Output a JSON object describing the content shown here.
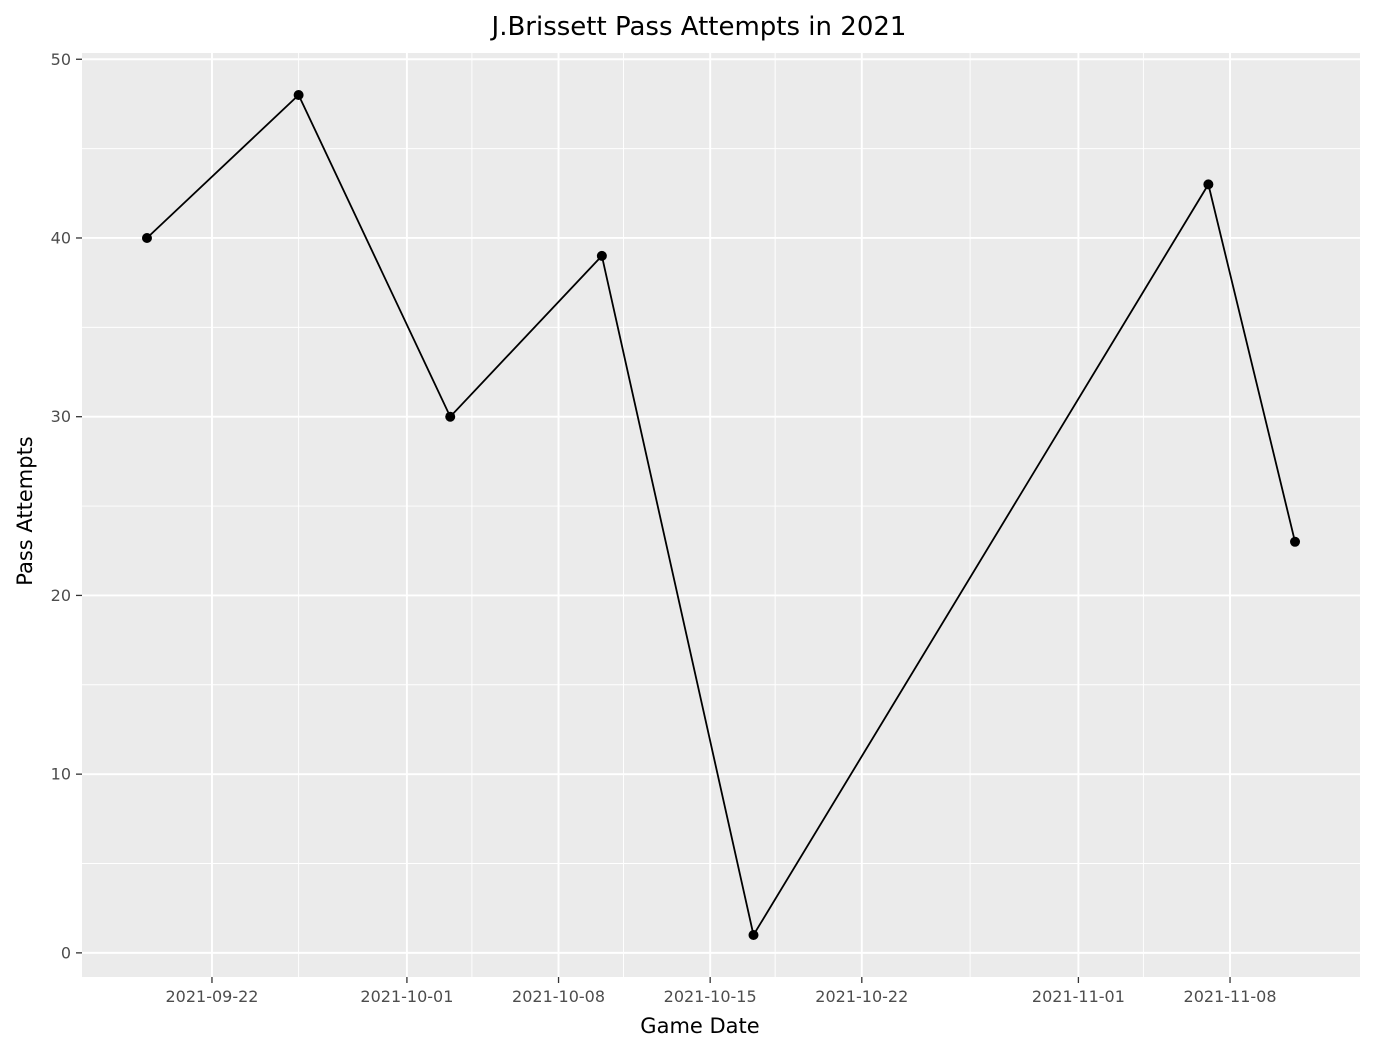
{
  "chart_data": {
    "type": "line",
    "title": "J.Brissett Pass Attempts in 2021",
    "xlabel": "Game Date",
    "ylabel": "Pass Attempts",
    "x_type": "date",
    "x": [
      "2021-09-19",
      "2021-09-26",
      "2021-10-03",
      "2021-10-10",
      "2021-10-17",
      "2021-11-07",
      "2021-11-11"
    ],
    "values": [
      40,
      48,
      30,
      39,
      1,
      43,
      23
    ],
    "x_ticks": [
      "2021-09-22",
      "2021-10-01",
      "2021-10-08",
      "2021-10-15",
      "2021-10-22",
      "2021-11-01",
      "2021-11-08"
    ],
    "x_minor_ticks": [
      "2021-09-26",
      "2021-10-04",
      "2021-10-11",
      "2021-10-18",
      "2021-10-27",
      "2021-11-04"
    ],
    "xlim": [
      "2021-09-16",
      "2021-11-14"
    ],
    "y_ticks": [
      0,
      10,
      20,
      30,
      40,
      50
    ],
    "ylim": [
      -1.35,
      50.35
    ],
    "grid": true,
    "legend": "none",
    "colors": {
      "panel_background": "#ebebeb",
      "grid": "#ffffff",
      "series": "#000000",
      "tick_label": "#4d4d4d"
    }
  }
}
